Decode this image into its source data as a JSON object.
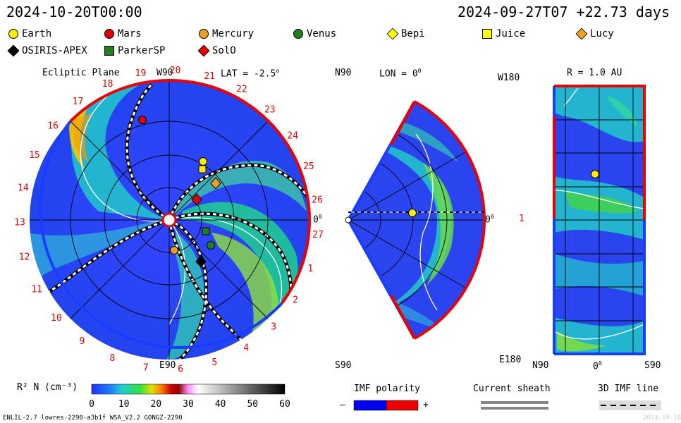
{
  "header": {
    "left_time": "2024-10-20T00:00",
    "right_time": "2024-09-27T07 +22.73 days"
  },
  "legend": [
    {
      "name": "Earth",
      "shape": "circle",
      "color": "#ffee00"
    },
    {
      "name": "Mars",
      "shape": "circle",
      "color": "#e00000"
    },
    {
      "name": "Mercury",
      "shape": "circle",
      "color": "#f0a020"
    },
    {
      "name": "Venus",
      "shape": "circle",
      "color": "#208020"
    },
    {
      "name": "Bepi",
      "shape": "diamond",
      "color": "#ffff00"
    },
    {
      "name": "Juice",
      "shape": "square",
      "color": "#ffff00"
    },
    {
      "name": "Lucy",
      "shape": "diamond",
      "color": "#f0a020"
    },
    {
      "name": "OSIRIS-APEX",
      "shape": "diamond",
      "color": "#000000"
    },
    {
      "name": "ParkerSP",
      "shape": "square",
      "color": "#208020"
    },
    {
      "name": "SolO",
      "shape": "diamond",
      "color": "#e00000"
    }
  ],
  "panels": {
    "ecliptic": {
      "title": "Ecliptic Plane",
      "top_label": "W90",
      "bottom_label": "E90",
      "lat_label": "LAT = -2.5",
      "right_label": "0",
      "carrington_ticks": [
        "19",
        "20",
        "21",
        "22",
        "23",
        "24",
        "25",
        "26",
        "27",
        "1",
        "2",
        "3",
        "4",
        "5",
        "6",
        "7",
        "8",
        "9",
        "10",
        "11",
        "12",
        "13",
        "14",
        "15",
        "16",
        "17",
        "18"
      ]
    },
    "meridional": {
      "top_left": "N90",
      "lon_label": "LON = 0",
      "bottom_left": "S90",
      "right_label": "0"
    },
    "sphere": {
      "top_left": "W180",
      "title": "R = 1.0 AU",
      "left_mid": "1",
      "bottom_left": "E180",
      "bottom_ticks": [
        "N90",
        "0",
        "S90"
      ]
    }
  },
  "colorbar": {
    "label": "R² N (cm⁻³)",
    "ticks": [
      "0",
      "10",
      "20",
      "30",
      "40",
      "50",
      "60"
    ],
    "min": 0,
    "max": 60
  },
  "imf": {
    "title": "IMF polarity",
    "minus": "–",
    "plus": "+",
    "neg_color": "#0000ee",
    "pos_color": "#ee0000"
  },
  "sheath": {
    "title": "Current sheath"
  },
  "imf3d": {
    "title": "3D IMF line"
  },
  "footer": {
    "left": "ENLIL-2.7 lowres-2290-a3b1f WSA_V2.2 GONGZ-2290",
    "right": "2024-10-18"
  }
}
